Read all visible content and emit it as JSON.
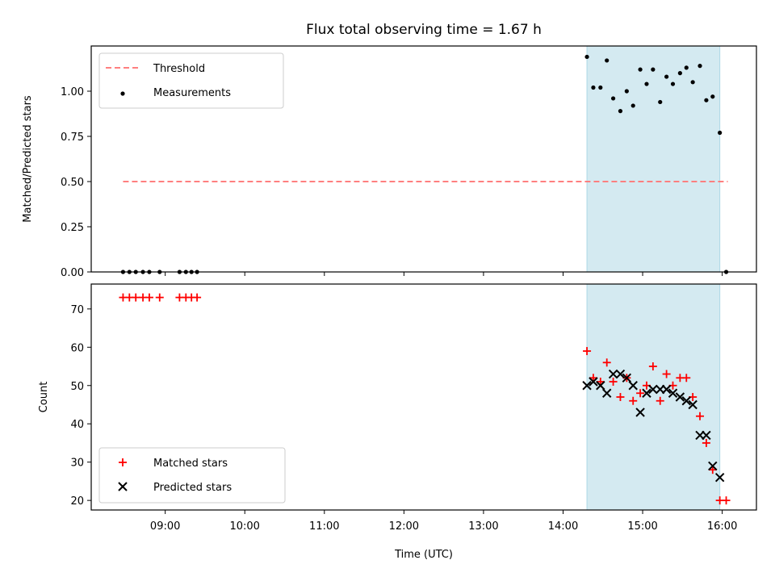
{
  "chart_data": {
    "title": "Flux total observing time = 1.67 h",
    "shared_x": {
      "label": "Time (UTC)",
      "ticks": [
        "09:00",
        "10:00",
        "11:00",
        "12:00",
        "13:00",
        "14:00",
        "15:00",
        "16:00"
      ],
      "tick_hours": [
        9,
        10,
        11,
        12,
        13,
        14,
        15,
        16
      ],
      "xlim": [
        8.07,
        16.43
      ]
    },
    "shaded_region": {
      "x": [
        14.3,
        15.97
      ],
      "color": "#d4eaf1"
    },
    "panels": [
      {
        "type": "scatter",
        "ylabel": "Matched/Predicted stars",
        "ylim": [
          0,
          1.25
        ],
        "yticks": [
          "0.00",
          "0.25",
          "0.50",
          "0.75",
          "1.00"
        ],
        "ytick_values": [
          0,
          0.25,
          0.5,
          0.75,
          1.0
        ],
        "legend": {
          "placement": "upper-left",
          "entries": [
            "Threshold",
            "Measurements"
          ]
        },
        "series": [
          {
            "name": "Threshold",
            "kind": "dashed-line",
            "color": "#ff7f7f",
            "x": [
              8.47,
              16.07
            ],
            "y": [
              0.5,
              0.5
            ]
          },
          {
            "name": "Measurements",
            "kind": "dot",
            "color": "#000000",
            "x": [
              8.47,
              8.55,
              8.63,
              8.72,
              8.8,
              8.93,
              9.18,
              9.26,
              9.33,
              9.4,
              14.3,
              14.38,
              14.47,
              14.55,
              14.63,
              14.72,
              14.8,
              14.88,
              14.97,
              15.05,
              15.13,
              15.22,
              15.3,
              15.38,
              15.47,
              15.55,
              15.63,
              15.72,
              15.8,
              15.88,
              15.97,
              16.05
            ],
            "y": [
              0,
              0,
              0,
              0,
              0,
              0,
              0,
              0,
              0,
              0,
              1.19,
              1.02,
              1.02,
              1.17,
              0.96,
              0.89,
              1.0,
              0.92,
              1.12,
              1.04,
              1.12,
              0.94,
              1.08,
              1.04,
              1.1,
              1.13,
              1.05,
              1.14,
              0.95,
              0.97,
              0.77,
              0
            ]
          }
        ]
      },
      {
        "type": "scatter",
        "ylabel": "Count",
        "ylim": [
          17.5,
          76.5
        ],
        "yticks": [
          "20",
          "30",
          "40",
          "50",
          "60",
          "70"
        ],
        "ytick_values": [
          20,
          30,
          40,
          50,
          60,
          70
        ],
        "legend": {
          "placement": "lower-left",
          "entries": [
            "Matched stars",
            "Predicted stars"
          ]
        },
        "series": [
          {
            "name": "Matched stars",
            "kind": "plus",
            "color": "#ff0000",
            "x": [
              8.47,
              8.55,
              8.63,
              8.72,
              8.8,
              8.93,
              9.18,
              9.26,
              9.33,
              9.4,
              14.3,
              14.38,
              14.47,
              14.55,
              14.63,
              14.72,
              14.8,
              14.88,
              14.97,
              15.05,
              15.13,
              15.22,
              15.3,
              15.38,
              15.47,
              15.55,
              15.63,
              15.72,
              15.8,
              15.88,
              15.97,
              16.05
            ],
            "y": [
              73,
              73,
              73,
              73,
              73,
              73,
              73,
              73,
              73,
              73,
              59,
              52,
              51,
              56,
              51,
              47,
              52,
              46,
              48,
              50,
              55,
              46,
              53,
              50,
              52,
              52,
              47,
              42,
              35,
              28,
              20,
              20
            ]
          },
          {
            "name": "Predicted stars",
            "kind": "cross",
            "color": "#000000",
            "x": [
              14.3,
              14.38,
              14.47,
              14.55,
              14.63,
              14.72,
              14.8,
              14.88,
              14.97,
              15.05,
              15.13,
              15.22,
              15.3,
              15.38,
              15.47,
              15.55,
              15.63,
              15.72,
              15.8,
              15.88,
              15.97
            ],
            "y": [
              50,
              51,
              50,
              48,
              53,
              53,
              52,
              50,
              43,
              48,
              49,
              49,
              49,
              48,
              47,
              46,
              45,
              37,
              37,
              29,
              26
            ]
          }
        ]
      }
    ]
  }
}
